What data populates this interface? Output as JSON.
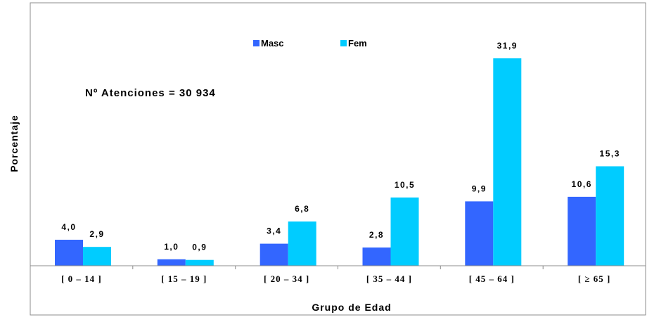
{
  "chart_data": {
    "type": "bar",
    "title": "",
    "xlabel": "Grupo  de  Edad",
    "ylabel": "Porcentaje",
    "categories": [
      "[ 0 – 14 ]",
      "[ 15 – 19 ]",
      "[ 20 – 34 ]",
      "[ 35 – 44 ]",
      "[ 45 – 64 ]",
      "[ ≥ 65 ]"
    ],
    "series": [
      {
        "name": "Masc",
        "color": "#3366ff",
        "values": [
          4.0,
          1.0,
          3.4,
          2.8,
          9.9,
          10.6
        ],
        "labels": [
          "4,0",
          "1,0",
          "3,4",
          "2,8",
          "9,9",
          "10,6"
        ]
      },
      {
        "name": "Fem",
        "color": "#00ccff",
        "values": [
          2.9,
          0.9,
          6.8,
          10.5,
          31.9,
          15.3
        ],
        "labels": [
          "2,9",
          "0,9",
          "6,8",
          "10,5",
          "31,9",
          "15,3"
        ]
      }
    ],
    "ylim": [
      0,
      34
    ],
    "grid": false,
    "y_tick_labels": false,
    "legend_position": "top-center",
    "annotation": "Nº Atenciones  = 30 934"
  }
}
